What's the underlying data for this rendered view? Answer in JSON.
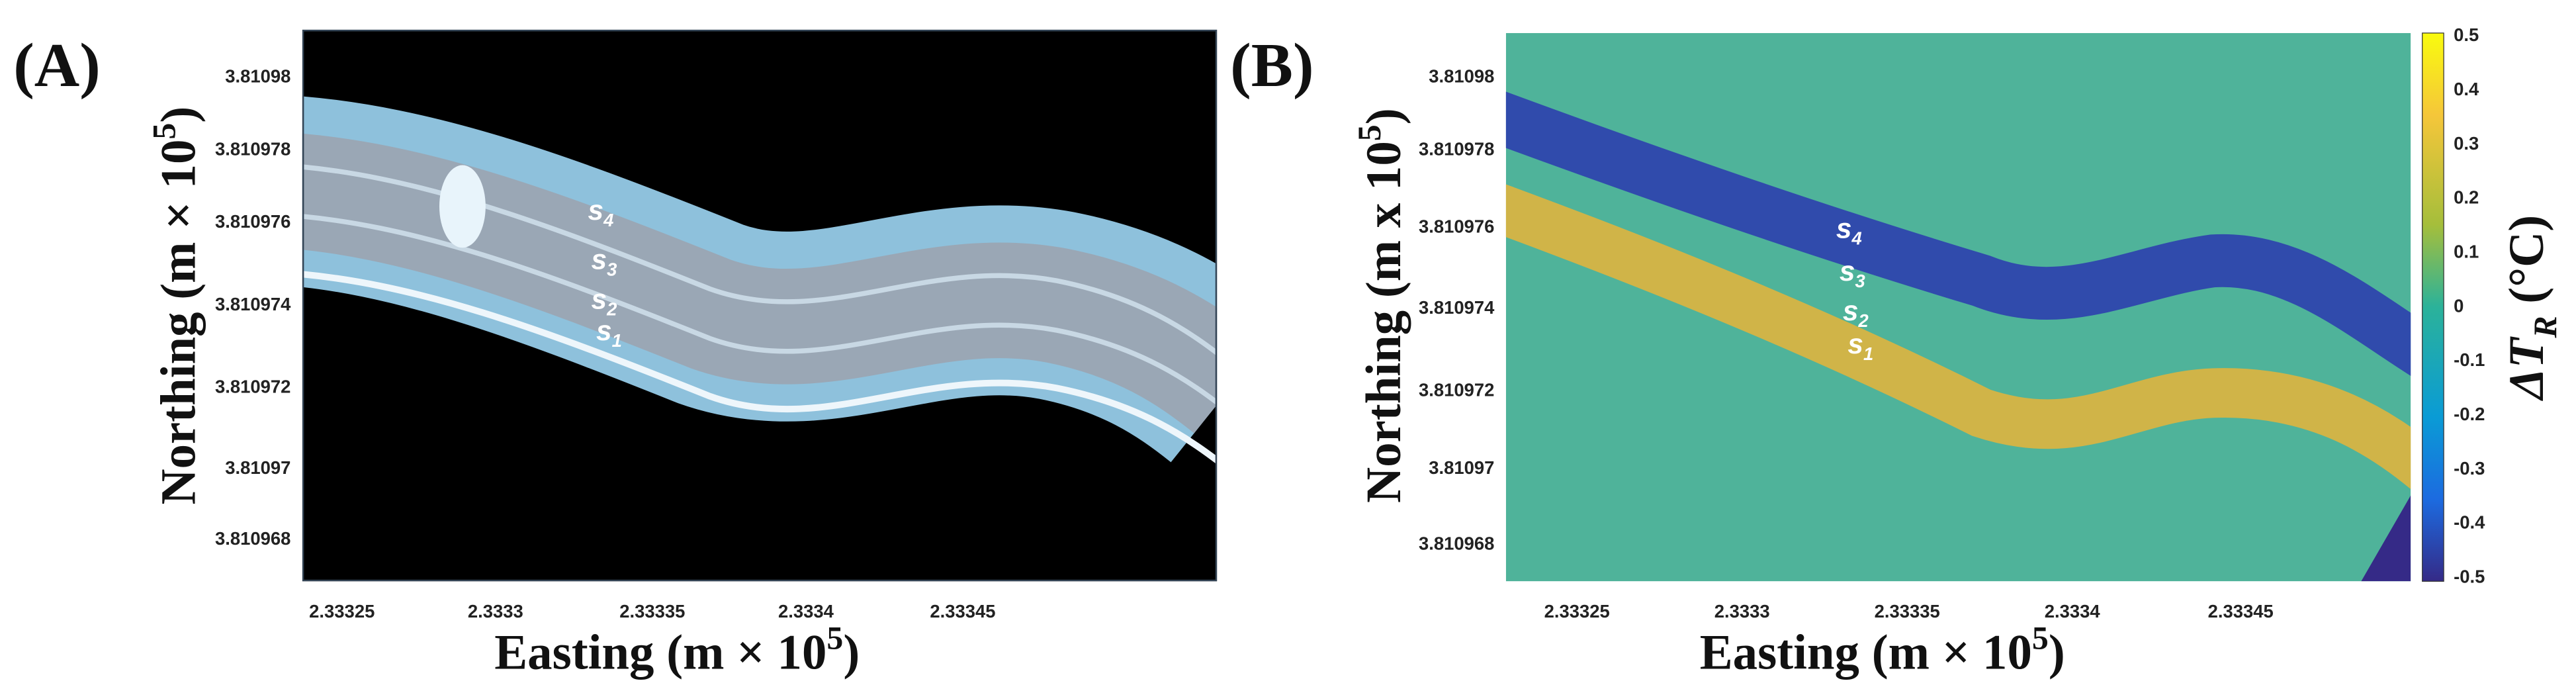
{
  "panels": [
    {
      "label": "(A)",
      "ylabel": {
        "text": "Northing (m × 10",
        "sup": "5",
        "close": ")"
      },
      "xlabel": {
        "text": "Easting (m × 10",
        "sup": "5",
        "close": ")"
      },
      "yticks": [
        "3.81098",
        "3.810978",
        "3.810976",
        "3.810974",
        "3.810972",
        "3.81097",
        "3.810968"
      ],
      "xticks": [
        "2.33325",
        "2.3333",
        "2.33335",
        "2.3334",
        "2.33345"
      ],
      "annotations": [
        {
          "text": "s",
          "sub": "4"
        },
        {
          "text": "s",
          "sub": "3"
        },
        {
          "text": "s",
          "sub": "2"
        },
        {
          "text": "s",
          "sub": "1"
        }
      ]
    },
    {
      "label": "(B)",
      "ylabel": {
        "text": "Northing (m x 10",
        "sup": "5",
        "close": ")"
      },
      "xlabel": {
        "text": "Easting (m × 10",
        "sup": "5",
        "close": ")"
      },
      "yticks": [
        "3.81098",
        "3.810978",
        "3.810976",
        "3.810974",
        "3.810972",
        "3.81097",
        "3.810968"
      ],
      "xticks": [
        "2.33325",
        "2.3333",
        "2.33335",
        "2.3334",
        "2.33345"
      ],
      "annotations": [
        {
          "text": "s",
          "sub": "4"
        },
        {
          "text": "s",
          "sub": "3"
        },
        {
          "text": "s",
          "sub": "2"
        },
        {
          "text": "s",
          "sub": "1"
        }
      ],
      "colorbar": {
        "label": {
          "text": "ΔT",
          "sub": "R",
          "close": " (°C)"
        },
        "ticks": [
          "0.5",
          "0.4",
          "0.3",
          "0.2",
          "0.1",
          "0",
          "-0.1",
          "-0.2",
          "-0.3",
          "-0.4",
          "-0.5"
        ]
      }
    }
  ]
}
